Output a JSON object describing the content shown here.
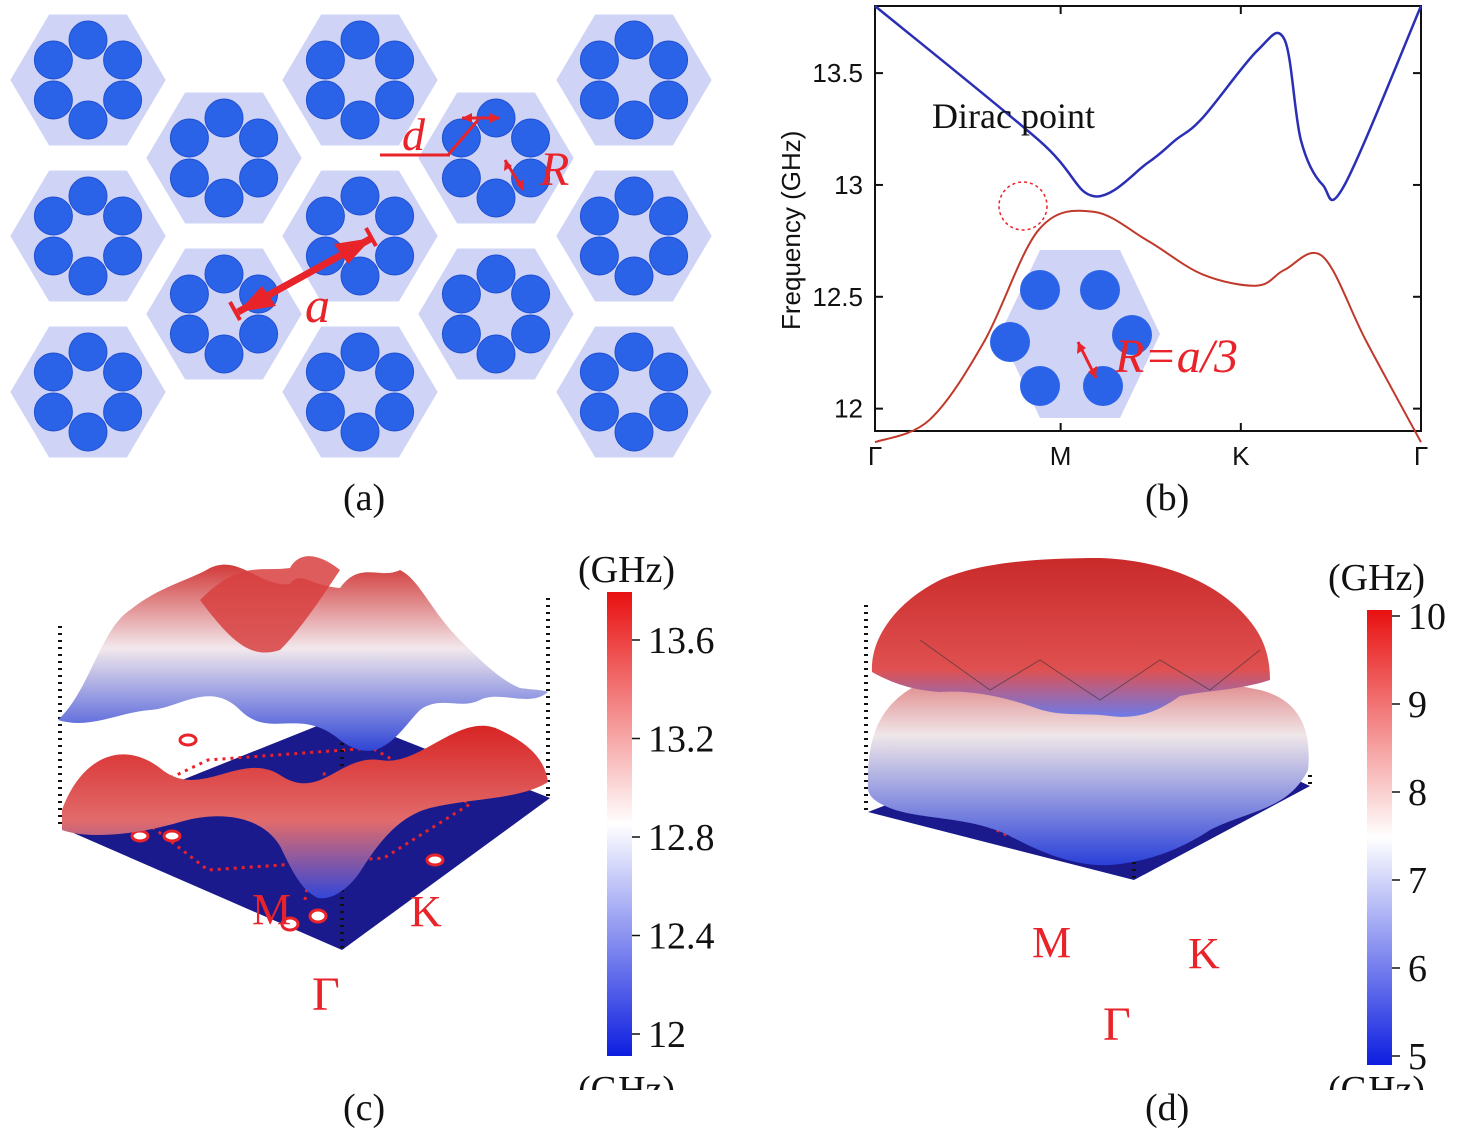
{
  "panels": {
    "a": {
      "caption": "(a)",
      "labels": {
        "d": "d",
        "R": "R",
        "a": "a"
      }
    },
    "b": {
      "caption": "(b)",
      "ylabel": "Frequency (GHz)",
      "annotation": "Dirac point",
      "inset_label": "R=a/3",
      "xticks": [
        "Γ",
        "M",
        "K",
        "Γ"
      ],
      "yticks": [
        "12",
        "12.5",
        "13",
        "13.5"
      ]
    },
    "c": {
      "caption": "(c)",
      "colorbar_top_unit": "(GHz)",
      "colorbar_bottom_unit": "(GHz)",
      "colorbar_ticks": [
        "13.6",
        "13.2",
        "12.8",
        "12.4",
        "12"
      ],
      "points": {
        "M": "M",
        "K": "K",
        "G": "Γ"
      }
    },
    "d": {
      "caption": "(d)",
      "colorbar_top_unit": "(GHz)",
      "colorbar_bottom_unit": "(GHz)",
      "colorbar_ticks": [
        "10",
        "9",
        "8",
        "7",
        "6",
        "5"
      ],
      "points": {
        "M": "M",
        "K": "K",
        "G": "Γ"
      }
    }
  },
  "chart_data": {
    "type": "line",
    "xlabel": "",
    "ylabel": "Frequency (GHz)",
    "categories": [
      "Γ",
      "M",
      "K",
      "Γ"
    ],
    "ylim": [
      11.9,
      13.8
    ],
    "series": [
      {
        "color": "#2b2fb5",
        "x": [
          0,
          0.3,
          0.4,
          0.5,
          0.55,
          0.6,
          0.7,
          0.75,
          0.78,
          0.82,
          0.86,
          1.0
        ],
        "values": [
          13.8,
          13.2,
          12.95,
          13.1,
          13.2,
          13.3,
          13.6,
          13.65,
          13.2,
          13.0,
          13.0,
          13.8
        ]
      },
      {
        "color": "#c0392b",
        "x": [
          0,
          0.1,
          0.2,
          0.3,
          0.4,
          0.5,
          0.6,
          0.7,
          0.75,
          0.82,
          0.9,
          1.0
        ],
        "values": [
          11.85,
          11.95,
          12.3,
          12.8,
          12.88,
          12.75,
          12.6,
          12.55,
          12.62,
          12.68,
          12.3,
          11.85
        ]
      }
    ]
  },
  "colors": {
    "hexagon": "#cfd4f7",
    "rod": "#2b63e8",
    "annotation_red": "#e8232a",
    "upper_band": "#2b2fb5",
    "lower_band": "#c0392b"
  }
}
